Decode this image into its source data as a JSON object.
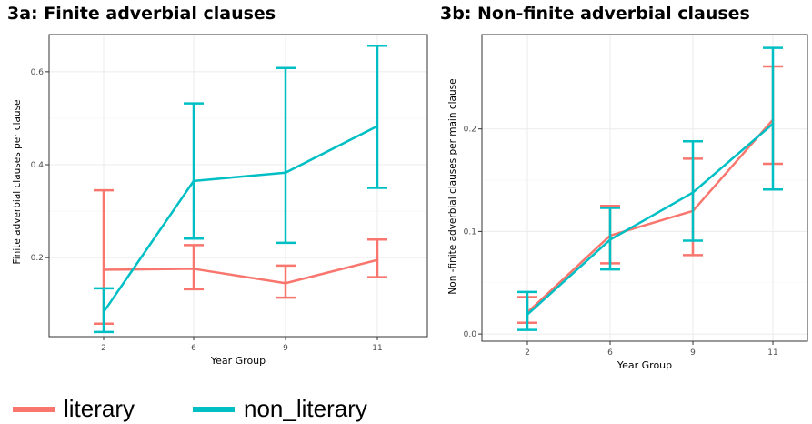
{
  "titles": {
    "a": "3a: Finite adverbial clauses",
    "b": "3b: Non-finite adverbial clauses"
  },
  "legend": [
    {
      "name": "literary",
      "color": "#F8766D"
    },
    {
      "name": "non_literary",
      "color": "#00BFC4"
    }
  ],
  "chart_data": [
    {
      "type": "line",
      "title": "3a: Finite adverbial clauses",
      "xlabel": "Year Group",
      "ylabel": "Finite adverbial clauses per clause",
      "categories": [
        "2",
        "6",
        "9",
        "11"
      ],
      "ylim": [
        0.03,
        0.68
      ],
      "yticks": [
        0.2,
        0.4,
        0.6
      ],
      "ytick_labels": [
        "0.2",
        "0.4",
        "0.6"
      ],
      "grid": true,
      "legend_position": "bottom",
      "series": [
        {
          "name": "literary",
          "color": "#F8766D",
          "values": [
            0.174,
            0.176,
            0.145,
            0.195
          ],
          "error_low": [
            0.058,
            0.132,
            0.114,
            0.158
          ],
          "error_high": [
            0.345,
            0.227,
            0.183,
            0.239
          ]
        },
        {
          "name": "non_literary",
          "color": "#00BFC4",
          "values": [
            0.083,
            0.365,
            0.383,
            0.483
          ],
          "error_low": [
            0.04,
            0.241,
            0.232,
            0.35
          ],
          "error_high": [
            0.134,
            0.532,
            0.608,
            0.656
          ]
        }
      ]
    },
    {
      "type": "line",
      "title": "3b: Non-finite adverbial clauses",
      "xlabel": "Year Group",
      "ylabel": "Non -finite adverbial clauses per main clause",
      "categories": [
        "2",
        "6",
        "9",
        "11"
      ],
      "ylim": [
        -0.007,
        0.292
      ],
      "yticks": [
        0.0,
        0.1,
        0.2
      ],
      "ytick_labels": [
        "0.0",
        "0.1",
        "0.2"
      ],
      "grid": true,
      "legend_position": "bottom",
      "series": [
        {
          "name": "literary",
          "color": "#F8766D",
          "values": [
            0.021,
            0.096,
            0.12,
            0.209
          ],
          "error_low": [
            0.011,
            0.069,
            0.077,
            0.166
          ],
          "error_high": [
            0.036,
            0.125,
            0.171,
            0.261
          ]
        },
        {
          "name": "non_literary",
          "color": "#00BFC4",
          "values": [
            0.019,
            0.092,
            0.138,
            0.205
          ],
          "error_low": [
            0.004,
            0.063,
            0.091,
            0.141
          ],
          "error_high": [
            0.041,
            0.123,
            0.188,
            0.279
          ]
        }
      ]
    }
  ]
}
